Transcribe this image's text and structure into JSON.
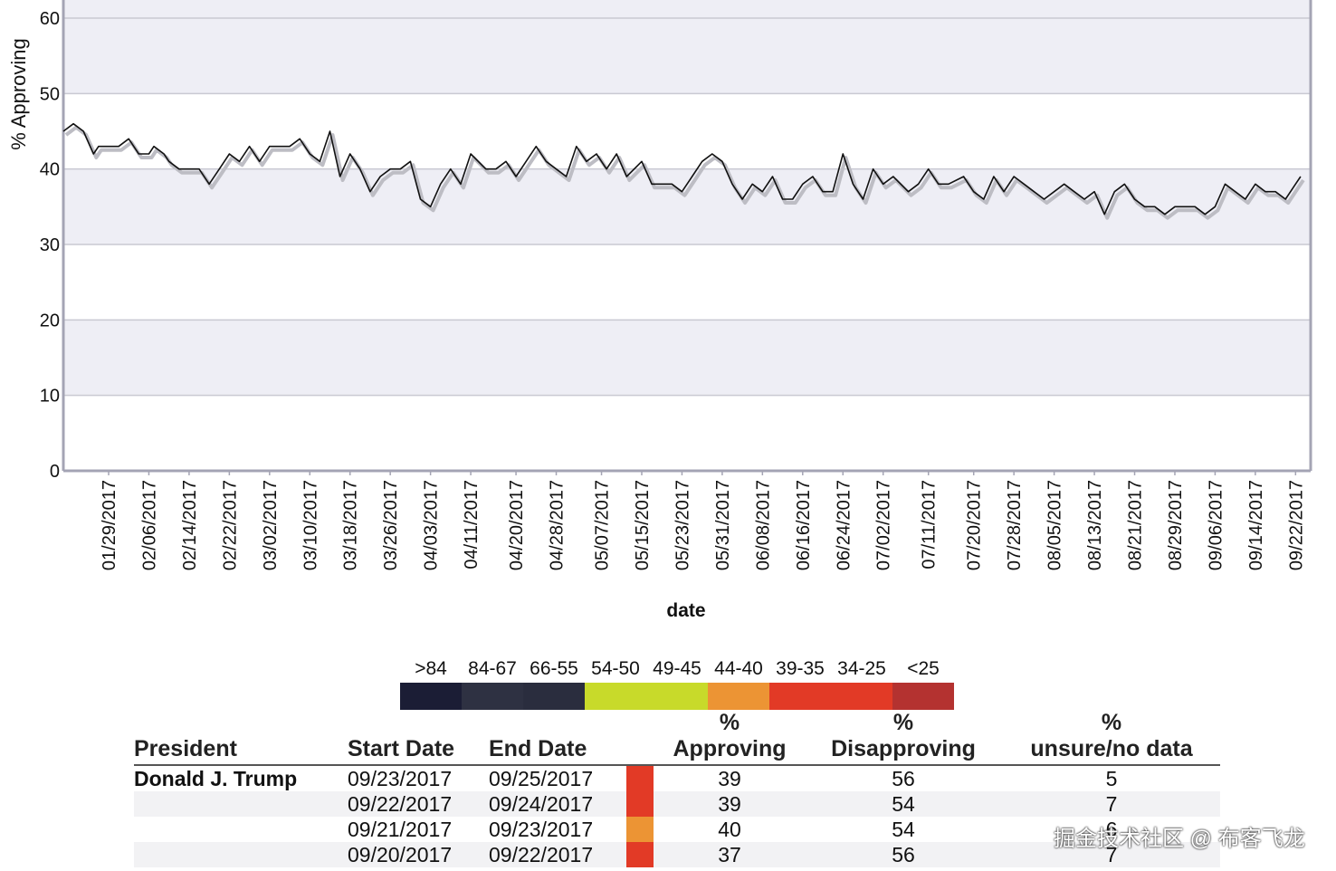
{
  "chart_data": {
    "type": "line",
    "ylabel": "% Approving",
    "xlabel": "date",
    "ylim": [
      0,
      60
    ],
    "yticks": [
      0,
      10,
      20,
      30,
      40,
      50,
      60
    ],
    "xlim": [
      "2017-01-20",
      "2017-09-25"
    ],
    "grid": true,
    "xtick_labels": [
      "01/29/2017",
      "02/06/2017",
      "02/14/2017",
      "02/22/2017",
      "03/02/2017",
      "03/10/2017",
      "03/18/2017",
      "03/26/2017",
      "04/03/2017",
      "04/11/2017",
      "04/20/2017",
      "04/28/2017",
      "05/07/2017",
      "05/15/2017",
      "05/23/2017",
      "05/31/2017",
      "06/08/2017",
      "06/16/2017",
      "06/24/2017",
      "07/02/2017",
      "07/11/2017",
      "07/20/2017",
      "07/28/2017",
      "08/05/2017",
      "08/13/2017",
      "08/21/2017",
      "08/29/2017",
      "09/06/2017",
      "09/14/2017",
      "09/22/2017"
    ],
    "series": [
      {
        "x": [
          "2017-01-20",
          "2017-01-22",
          "2017-01-24",
          "2017-01-26",
          "2017-01-27",
          "2017-01-29",
          "2017-01-31",
          "2017-02-02",
          "2017-02-04",
          "2017-02-06",
          "2017-02-07",
          "2017-02-09",
          "2017-02-10",
          "2017-02-12",
          "2017-02-14",
          "2017-02-16",
          "2017-02-18",
          "2017-02-20",
          "2017-02-22",
          "2017-02-24",
          "2017-02-26",
          "2017-02-28",
          "2017-03-02",
          "2017-03-04",
          "2017-03-06",
          "2017-03-08",
          "2017-03-10",
          "2017-03-12",
          "2017-03-14",
          "2017-03-16",
          "2017-03-18",
          "2017-03-20",
          "2017-03-22",
          "2017-03-24",
          "2017-03-26",
          "2017-03-28",
          "2017-03-30",
          "2017-04-01",
          "2017-04-03",
          "2017-04-05",
          "2017-04-07",
          "2017-04-09",
          "2017-04-11",
          "2017-04-14",
          "2017-04-16",
          "2017-04-18",
          "2017-04-20",
          "2017-04-22",
          "2017-04-24",
          "2017-04-26",
          "2017-04-28",
          "2017-04-30",
          "2017-05-02",
          "2017-05-04",
          "2017-05-06",
          "2017-05-08",
          "2017-05-10",
          "2017-05-12",
          "2017-05-15",
          "2017-05-17",
          "2017-05-19",
          "2017-05-21",
          "2017-05-23",
          "2017-05-25",
          "2017-05-27",
          "2017-05-29",
          "2017-05-31",
          "2017-06-02",
          "2017-06-04",
          "2017-06-06",
          "2017-06-08",
          "2017-06-10",
          "2017-06-12",
          "2017-06-14",
          "2017-06-16",
          "2017-06-18",
          "2017-06-20",
          "2017-06-22",
          "2017-06-24",
          "2017-06-26",
          "2017-06-28",
          "2017-06-30",
          "2017-07-02",
          "2017-07-04",
          "2017-07-07",
          "2017-07-09",
          "2017-07-11",
          "2017-07-13",
          "2017-07-15",
          "2017-07-18",
          "2017-07-20",
          "2017-07-22",
          "2017-07-24",
          "2017-07-26",
          "2017-07-28",
          "2017-07-30",
          "2017-08-01",
          "2017-08-03",
          "2017-08-05",
          "2017-08-07",
          "2017-08-09",
          "2017-08-11",
          "2017-08-13",
          "2017-08-15",
          "2017-08-17",
          "2017-08-19",
          "2017-08-21",
          "2017-08-23",
          "2017-08-25",
          "2017-08-27",
          "2017-08-29",
          "2017-08-31",
          "2017-09-02",
          "2017-09-04",
          "2017-09-06",
          "2017-09-08",
          "2017-09-10",
          "2017-09-12",
          "2017-09-14",
          "2017-09-16",
          "2017-09-18",
          "2017-09-20",
          "2017-09-22",
          "2017-09-23"
        ],
        "y": [
          45,
          46,
          45,
          42,
          43,
          43,
          43,
          44,
          42,
          42,
          43,
          42,
          41,
          40,
          40,
          40,
          38,
          40,
          42,
          41,
          43,
          41,
          43,
          43,
          43,
          44,
          42,
          41,
          45,
          39,
          42,
          40,
          37,
          39,
          40,
          40,
          41,
          36,
          35,
          38,
          40,
          38,
          42,
          40,
          40,
          41,
          39,
          41,
          43,
          41,
          40,
          39,
          43,
          41,
          42,
          40,
          42,
          39,
          41,
          38,
          38,
          38,
          37,
          39,
          41,
          42,
          41,
          38,
          36,
          38,
          37,
          39,
          36,
          36,
          38,
          39,
          37,
          37,
          42,
          38,
          36,
          40,
          38,
          39,
          37,
          38,
          40,
          38,
          38,
          39,
          37,
          36,
          39,
          37,
          39,
          38,
          37,
          36,
          37,
          38,
          37,
          36,
          37,
          34,
          37,
          38,
          36,
          35,
          35,
          34,
          35,
          35,
          35,
          34,
          35,
          38,
          37,
          36,
          38,
          37,
          37,
          36,
          38,
          39
        ]
      }
    ]
  },
  "legend": {
    "ranges": [
      ">84",
      "84-67",
      "66-55",
      "54-50",
      "49-45",
      "44-40",
      "39-35",
      "34-25",
      "<25"
    ],
    "colors": [
      "#1b1d35",
      "#2e3142",
      "#2a2d3e",
      "#c8da2a",
      "#c8da2a",
      "#ec9434",
      "#e23a26",
      "#e23a26",
      "#b43230"
    ]
  },
  "table": {
    "headers": {
      "president": "President",
      "start_date": "Start Date",
      "end_date": "End Date",
      "approving_pct": "%",
      "approving": "Approving",
      "disapproving_pct": "%",
      "disapproving": "Disapproving",
      "unsure_pct": "%",
      "unsure": "unsure/no data"
    },
    "rows": [
      {
        "president": "Donald J. Trump",
        "start": "09/23/2017",
        "end": "09/25/2017",
        "approving": "39",
        "disapproving": "56",
        "unsure": "5",
        "color": "#e23a26"
      },
      {
        "president": "",
        "start": "09/22/2017",
        "end": "09/24/2017",
        "approving": "39",
        "disapproving": "54",
        "unsure": "7",
        "color": "#e23a26"
      },
      {
        "president": "",
        "start": "09/21/2017",
        "end": "09/23/2017",
        "approving": "40",
        "disapproving": "54",
        "unsure": "6",
        "color": "#ec9434"
      },
      {
        "president": "",
        "start": "09/20/2017",
        "end": "09/22/2017",
        "approving": "37",
        "disapproving": "56",
        "unsure": "7",
        "color": "#e23a26"
      }
    ]
  },
  "watermark": "掘金技术社区 @ 布客飞龙"
}
